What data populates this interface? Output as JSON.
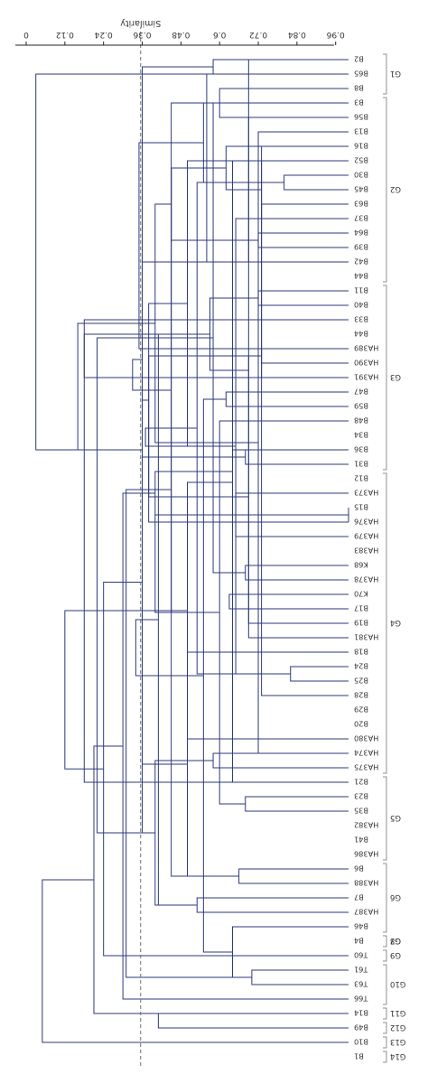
{
  "chart_data": {
    "type": "dendrogram",
    "orientation": "mirrored",
    "xlabel": "Similarity",
    "ticks": [
      "0",
      "0.12",
      "0.24",
      "0.36",
      "0.48",
      "0.6",
      "0.72",
      "0.84",
      "0.96"
    ],
    "xlim": [
      0,
      1.0
    ],
    "cutoff": 0.355,
    "colors": {
      "line": "#2d3a7a",
      "axis": "#222222",
      "bracket": "#8a9098",
      "cutoff": "#6f6f6f"
    },
    "leaves": [
      "B1",
      "B10",
      "B49",
      "B14",
      "T66",
      "T63",
      "T61",
      "T60",
      "B4",
      "B46",
      "HA387",
      "B7",
      "HA388",
      "B6",
      "HA386",
      "B41",
      "HA382",
      "B35",
      "B23",
      "B21",
      "HA375",
      "HA374",
      "HA380",
      "B20",
      "B29",
      "B28",
      "B25",
      "B24",
      "B18",
      "HA381",
      "B19",
      "B17",
      "K70",
      "HA378",
      "K68",
      "HA383",
      "HA379",
      "HA376",
      "B15",
      "HA373",
      "B12",
      "B31",
      "B36",
      "B34",
      "B48",
      "B59",
      "B47",
      "HA391",
      "HA390",
      "HA389",
      "B44",
      "B33",
      "B40",
      "B11",
      "B44",
      "B42",
      "B39",
      "B64",
      "B37",
      "B63",
      "B45",
      "B30",
      "B52",
      "B16",
      "B13",
      "B56",
      "B3",
      "B8",
      "B65",
      "B2"
    ],
    "merges": [
      [
        37,
        38,
        1.0
      ],
      [
        26,
        27,
        0.82
      ],
      [
        60,
        61,
        0.8
      ],
      [
        25,
        59,
        0.73
      ],
      [
        48,
        49,
        0.73
      ],
      [
        58,
        62,
        0.73
      ],
      [
        5,
        6,
        0.7
      ],
      [
        47,
        63,
        0.73
      ],
      [
        56,
        57,
        0.72
      ],
      [
        21,
        64,
        0.72
      ],
      [
        52,
        53,
        0.72
      ],
      [
        65,
        30,
        0.69
      ],
      [
        55,
        69,
        0.69
      ],
      [
        17,
        18,
        0.68
      ],
      [
        41,
        42,
        0.68
      ],
      [
        12,
        13,
        0.66
      ],
      [
        29,
        74,
        0.69
      ],
      [
        33,
        34,
        0.68
      ],
      [
        36,
        39,
        0.65
      ],
      [
        58,
        71,
        0.65
      ],
      [
        9,
        76,
        0.64
      ],
      [
        19,
        62,
        0.64
      ],
      [
        31,
        32,
        0.63
      ],
      [
        73,
        70,
        0.64
      ],
      [
        45,
        46,
        0.62
      ],
      [
        75,
        63,
        0.62
      ],
      [
        44,
        83,
        0.6
      ],
      [
        65,
        67,
        0.6
      ],
      [
        66,
        87,
        0.58
      ],
      [
        20,
        21,
        0.58
      ],
      [
        68,
        69,
        0.58
      ],
      [
        80,
        81,
        0.57
      ],
      [
        77,
        68,
        0.56
      ],
      [
        72,
        66,
        0.55
      ],
      [
        82,
        89,
        0.5
      ],
      [
        90,
        94,
        0.55
      ],
      [
        10,
        11,
        0.53
      ],
      [
        71,
        72,
        0.53
      ],
      [
        93,
        22,
        0.5
      ],
      [
        85,
        28,
        0.5
      ],
      [
        78,
        102,
        0.45
      ],
      [
        95,
        96,
        0.45
      ],
      [
        85,
        97,
        0.45
      ],
      [
        91,
        70,
        0.4
      ],
      [
        86,
        104,
        0.38
      ],
      [
        96,
        88,
        0.4
      ],
      [
        106,
        101,
        0.41
      ],
      [
        74,
        37,
        0.38
      ],
      [
        99,
        106,
        0.4
      ],
      [
        2,
        3,
        0.41
      ],
      [
        79,
        110,
        0.4
      ],
      [
        113,
        4,
        0.3
      ],
      [
        55,
        84,
        0.36
      ],
      [
        105,
        116,
        0.34
      ],
      [
        89,
        107,
        0.37
      ],
      [
        114,
        109,
        0.36
      ],
      [
        49,
        103,
        0.35
      ],
      [
        118,
        100,
        0.36
      ],
      [
        122,
        111,
        0.33
      ],
      [
        112,
        76,
        0.31
      ],
      [
        125,
        7,
        0.24
      ],
      [
        98,
        118,
        0.22
      ],
      [
        121,
        3,
        0.21
      ],
      [
        19,
        51,
        0.18
      ],
      [
        127,
        120,
        0.16
      ],
      [
        47,
        101,
        0.18
      ],
      [
        130,
        108,
        0.12
      ],
      [
        132,
        1,
        0.05
      ],
      [
        127,
        68,
        0.03
      ]
    ],
    "groups": [
      {
        "label": "G1",
        "from": 67,
        "to": 69
      },
      {
        "label": "G2",
        "from": 54,
        "to": 66
      },
      {
        "label": "G3",
        "from": 41,
        "to": 53
      },
      {
        "label": "G4",
        "from": 20,
        "to": 40
      },
      {
        "label": "G5",
        "from": 14,
        "to": 19
      },
      {
        "label": "G6",
        "from": 9,
        "to": 13
      },
      {
        "label": "G7",
        "from": 8,
        "to": 8
      },
      {
        "label": "G8",
        "from": 8,
        "to": 8
      },
      {
        "label": "G9",
        "from": 7,
        "to": 7
      },
      {
        "label": "G10",
        "from": 4,
        "to": 6
      },
      {
        "label": "G11",
        "from": 3,
        "to": 3
      },
      {
        "label": "G12",
        "from": 2,
        "to": 2
      },
      {
        "label": "G13",
        "from": 1,
        "to": 1
      },
      {
        "label": "G14",
        "from": 0,
        "to": 0
      }
    ]
  }
}
